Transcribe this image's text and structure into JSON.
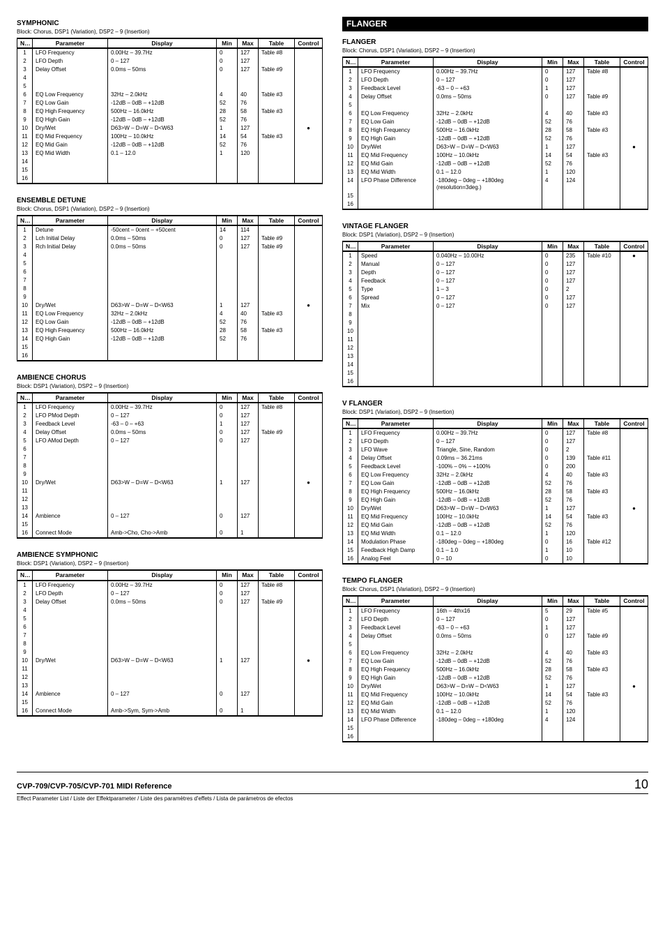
{
  "footer": {
    "title": "CVP-709/CVP-705/CVP-701 MIDI Reference",
    "sub": "Effect Parameter List / Liste der Effektparameter / Liste des paramètres d'effets / Lista de parámetros de efectos",
    "page": "10"
  },
  "headers": [
    "No.",
    "Parameter",
    "Display",
    "Min",
    "Max",
    "Table",
    "Control"
  ],
  "sections": {
    "symphonic": {
      "title": "SYMPHONIC",
      "sub": "Block: Chorus, DSP1 (Variation), DSP2 – 9 (Insertion)",
      "rows": [
        [
          "1",
          "LFO Frequency",
          "0.00Hz – 39.7Hz",
          "0",
          "127",
          "Table #8",
          ""
        ],
        [
          "2",
          "LFO Depth",
          "0 – 127",
          "0",
          "127",
          "",
          ""
        ],
        [
          "3",
          "Delay Offset",
          "0.0ms – 50ms",
          "0",
          "127",
          "Table #9",
          ""
        ],
        [
          "4",
          "",
          "",
          "",
          "",
          "",
          ""
        ],
        [
          "5",
          "",
          "",
          "",
          "",
          "",
          ""
        ],
        [
          "6",
          "EQ Low Frequency",
          "32Hz – 2.0kHz",
          "4",
          "40",
          "Table #3",
          ""
        ],
        [
          "7",
          "EQ Low Gain",
          "-12dB – 0dB – +12dB",
          "52",
          "76",
          "",
          ""
        ],
        [
          "8",
          "EQ High Frequency",
          "500Hz – 16.0kHz",
          "28",
          "58",
          "Table #3",
          ""
        ],
        [
          "9",
          "EQ High Gain",
          "-12dB – 0dB – +12dB",
          "52",
          "76",
          "",
          ""
        ],
        [
          "10",
          "Dry/Wet",
          "D63>W – D=W – D<W63",
          "1",
          "127",
          "",
          "●"
        ],
        [
          "11",
          "EQ Mid Frequency",
          "100Hz – 10.0kHz",
          "14",
          "54",
          "Table #3",
          ""
        ],
        [
          "12",
          "EQ Mid Gain",
          "-12dB – 0dB – +12dB",
          "52",
          "76",
          "",
          ""
        ],
        [
          "13",
          "EQ Mid Width",
          "0.1 – 12.0",
          "1",
          "120",
          "",
          ""
        ],
        [
          "14",
          "",
          "",
          "",
          "",
          "",
          ""
        ],
        [
          "15",
          "",
          "",
          "",
          "",
          "",
          ""
        ],
        [
          "16",
          "",
          "",
          "",
          "",
          "",
          ""
        ]
      ]
    },
    "ensemble": {
      "title": "ENSEMBLE DETUNE",
      "sub": "Block: Chorus, DSP1 (Variation), DSP2 – 9 (Insertion)",
      "rows": [
        [
          "1",
          "Detune",
          "-50cent – 0cent – +50cent",
          "14",
          "114",
          "",
          ""
        ],
        [
          "2",
          "Lch Initial Delay",
          "0.0ms – 50ms",
          "0",
          "127",
          "Table #9",
          ""
        ],
        [
          "3",
          "Rch Initial Delay",
          "0.0ms – 50ms",
          "0",
          "127",
          "Table #9",
          ""
        ],
        [
          "4",
          "",
          "",
          "",
          "",
          "",
          ""
        ],
        [
          "5",
          "",
          "",
          "",
          "",
          "",
          ""
        ],
        [
          "6",
          "",
          "",
          "",
          "",
          "",
          ""
        ],
        [
          "7",
          "",
          "",
          "",
          "",
          "",
          ""
        ],
        [
          "8",
          "",
          "",
          "",
          "",
          "",
          ""
        ],
        [
          "9",
          "",
          "",
          "",
          "",
          "",
          ""
        ],
        [
          "10",
          "Dry/Wet",
          "D63>W – D=W – D<W63",
          "1",
          "127",
          "",
          "●"
        ],
        [
          "11",
          "EQ Low Frequency",
          "32Hz – 2.0kHz",
          "4",
          "40",
          "Table #3",
          ""
        ],
        [
          "12",
          "EQ Low Gain",
          "-12dB – 0dB – +12dB",
          "52",
          "76",
          "",
          ""
        ],
        [
          "13",
          "EQ High Frequency",
          "500Hz – 16.0kHz",
          "28",
          "58",
          "Table #3",
          ""
        ],
        [
          "14",
          "EQ High Gain",
          "-12dB – 0dB – +12dB",
          "52",
          "76",
          "",
          ""
        ],
        [
          "15",
          "",
          "",
          "",
          "",
          "",
          ""
        ],
        [
          "16",
          "",
          "",
          "",
          "",
          "",
          ""
        ]
      ]
    },
    "ambChorus": {
      "title": "AMBIENCE CHORUS",
      "sub": "Block: DSP1 (Variation), DSP2 – 9 (Insertion)",
      "rows": [
        [
          "1",
          "LFO Frequency",
          "0.00Hz – 39.7Hz",
          "0",
          "127",
          "Table #8",
          ""
        ],
        [
          "2",
          "LFO PMod Depth",
          "0 – 127",
          "0",
          "127",
          "",
          ""
        ],
        [
          "3",
          "Feedback Level",
          "-63 – 0 – +63",
          "1",
          "127",
          "",
          ""
        ],
        [
          "4",
          "Delay Offset",
          "0.0ms – 50ms",
          "0",
          "127",
          "Table #9",
          ""
        ],
        [
          "5",
          "LFO AMod Depth",
          "0 – 127",
          "0",
          "127",
          "",
          ""
        ],
        [
          "6",
          "",
          "",
          "",
          "",
          "",
          ""
        ],
        [
          "7",
          "",
          "",
          "",
          "",
          "",
          ""
        ],
        [
          "8",
          "",
          "",
          "",
          "",
          "",
          ""
        ],
        [
          "9",
          "",
          "",
          "",
          "",
          "",
          ""
        ],
        [
          "10",
          "Dry/Wet",
          "D63>W – D=W – D<W63",
          "1",
          "127",
          "",
          "●"
        ],
        [
          "11",
          "",
          "",
          "",
          "",
          "",
          ""
        ],
        [
          "12",
          "",
          "",
          "",
          "",
          "",
          ""
        ],
        [
          "13",
          "",
          "",
          "",
          "",
          "",
          ""
        ],
        [
          "14",
          "Ambience",
          "0 – 127",
          "0",
          "127",
          "",
          ""
        ],
        [
          "15",
          "",
          "",
          "",
          "",
          "",
          ""
        ],
        [
          "16",
          "Connect Mode",
          "Amb->Cho, Cho->Amb",
          "0",
          "1",
          "",
          ""
        ]
      ]
    },
    "ambSym": {
      "title": "AMBIENCE SYMPHONIC",
      "sub": "Block: DSP1 (Variation), DSP2 – 9 (Insertion)",
      "rows": [
        [
          "1",
          "LFO Frequency",
          "0.00Hz – 39.7Hz",
          "0",
          "127",
          "Table #8",
          ""
        ],
        [
          "2",
          "LFO Depth",
          "0 – 127",
          "0",
          "127",
          "",
          ""
        ],
        [
          "3",
          "Delay Offset",
          "0.0ms – 50ms",
          "0",
          "127",
          "Table #9",
          ""
        ],
        [
          "4",
          "",
          "",
          "",
          "",
          "",
          ""
        ],
        [
          "5",
          "",
          "",
          "",
          "",
          "",
          ""
        ],
        [
          "6",
          "",
          "",
          "",
          "",
          "",
          ""
        ],
        [
          "7",
          "",
          "",
          "",
          "",
          "",
          ""
        ],
        [
          "8",
          "",
          "",
          "",
          "",
          "",
          ""
        ],
        [
          "9",
          "",
          "",
          "",
          "",
          "",
          ""
        ],
        [
          "10",
          "Dry/Wet",
          "D63>W – D=W – D<W63",
          "1",
          "127",
          "",
          "●"
        ],
        [
          "11",
          "",
          "",
          "",
          "",
          "",
          ""
        ],
        [
          "12",
          "",
          "",
          "",
          "",
          "",
          ""
        ],
        [
          "13",
          "",
          "",
          "",
          "",
          "",
          ""
        ],
        [
          "14",
          "Ambience",
          "0 – 127",
          "0",
          "127",
          "",
          ""
        ],
        [
          "15",
          "",
          "",
          "",
          "",
          "",
          ""
        ],
        [
          "16",
          "Connect Mode",
          "Amb->Sym, Sym->Amb",
          "0",
          "1",
          "",
          ""
        ]
      ]
    },
    "flangerBanner": "FLANGER",
    "flanger": {
      "title": "FLANGER",
      "sub": "Block: Chorus, DSP1 (Variation), DSP2 – 9 (Insertion)",
      "rows": [
        [
          "1",
          "LFO Frequency",
          "0.00Hz – 39.7Hz",
          "0",
          "127",
          "Table #8",
          ""
        ],
        [
          "2",
          "LFO Depth",
          "0 – 127",
          "0",
          "127",
          "",
          ""
        ],
        [
          "3",
          "Feedback Level",
          "-63 – 0 – +63",
          "1",
          "127",
          "",
          ""
        ],
        [
          "4",
          "Delay Offset",
          "0.0ms – 50ms",
          "0",
          "127",
          "Table #9",
          ""
        ],
        [
          "5",
          "",
          "",
          "",
          "",
          "",
          ""
        ],
        [
          "6",
          "EQ Low Frequency",
          "32Hz – 2.0kHz",
          "4",
          "40",
          "Table #3",
          ""
        ],
        [
          "7",
          "EQ Low Gain",
          "-12dB – 0dB – +12dB",
          "52",
          "76",
          "",
          ""
        ],
        [
          "8",
          "EQ High Frequency",
          "500Hz – 16.0kHz",
          "28",
          "58",
          "Table #3",
          ""
        ],
        [
          "9",
          "EQ High Gain",
          "-12dB – 0dB – +12dB",
          "52",
          "76",
          "",
          ""
        ],
        [
          "10",
          "Dry/Wet",
          "D63>W – D=W – D<W63",
          "1",
          "127",
          "",
          "●"
        ],
        [
          "11",
          "EQ Mid Frequency",
          "100Hz – 10.0kHz",
          "14",
          "54",
          "Table #3",
          ""
        ],
        [
          "12",
          "EQ Mid Gain",
          "-12dB – 0dB – +12dB",
          "52",
          "76",
          "",
          ""
        ],
        [
          "13",
          "EQ Mid Width",
          "0.1 – 12.0",
          "1",
          "120",
          "",
          ""
        ],
        [
          "14",
          "LFO Phase Difference",
          "-180deg – 0deg – +180deg (resolution=3deg.)",
          "4",
          "124",
          "",
          ""
        ],
        [
          "15",
          "",
          "",
          "",
          "",
          "",
          ""
        ],
        [
          "16",
          "",
          "",
          "",
          "",
          "",
          ""
        ]
      ]
    },
    "vintage": {
      "title": "VINTAGE FLANGER",
      "sub": "Block: DSP1 (Variation), DSP2 – 9 (Insertion)",
      "rows": [
        [
          "1",
          "Speed",
          "0.040Hz – 10.00Hz",
          "0",
          "235",
          "Table #10",
          "●"
        ],
        [
          "2",
          "Manual",
          "0 – 127",
          "0",
          "127",
          "",
          ""
        ],
        [
          "3",
          "Depth",
          "0 – 127",
          "0",
          "127",
          "",
          ""
        ],
        [
          "4",
          "Feedback",
          "0 – 127",
          "0",
          "127",
          "",
          ""
        ],
        [
          "5",
          "Type",
          "1 – 3",
          "0",
          "2",
          "",
          ""
        ],
        [
          "6",
          "Spread",
          "0 – 127",
          "0",
          "127",
          "",
          ""
        ],
        [
          "7",
          "Mix",
          "0 – 127",
          "0",
          "127",
          "",
          ""
        ],
        [
          "8",
          "",
          "",
          "",
          "",
          "",
          ""
        ],
        [
          "9",
          "",
          "",
          "",
          "",
          "",
          ""
        ],
        [
          "10",
          "",
          "",
          "",
          "",
          "",
          ""
        ],
        [
          "11",
          "",
          "",
          "",
          "",
          "",
          ""
        ],
        [
          "12",
          "",
          "",
          "",
          "",
          "",
          ""
        ],
        [
          "13",
          "",
          "",
          "",
          "",
          "",
          ""
        ],
        [
          "14",
          "",
          "",
          "",
          "",
          "",
          ""
        ],
        [
          "15",
          "",
          "",
          "",
          "",
          "",
          ""
        ],
        [
          "16",
          "",
          "",
          "",
          "",
          "",
          ""
        ]
      ]
    },
    "vflanger": {
      "title": "V FLANGER",
      "sub": "Block: DSP1 (Variation), DSP2 – 9 (Insertion)",
      "rows": [
        [
          "1",
          "LFO Frequency",
          "0.00Hz – 39.7Hz",
          "0",
          "127",
          "Table #8",
          ""
        ],
        [
          "2",
          "LFO Depth",
          "0 – 127",
          "0",
          "127",
          "",
          ""
        ],
        [
          "3",
          "LFO Wave",
          "Triangle, Sine, Random",
          "0",
          "2",
          "",
          ""
        ],
        [
          "4",
          "Delay Offset",
          "0.09ms – 36.21ms",
          "0",
          "139",
          "Table #11",
          ""
        ],
        [
          "5",
          "Feedback Level",
          "-100% – 0% – +100%",
          "0",
          "200",
          "",
          ""
        ],
        [
          "6",
          "EQ Low Frequency",
          "32Hz – 2.0kHz",
          "4",
          "40",
          "Table #3",
          ""
        ],
        [
          "7",
          "EQ Low Gain",
          "-12dB – 0dB – +12dB",
          "52",
          "76",
          "",
          ""
        ],
        [
          "8",
          "EQ High Frequency",
          "500Hz – 16.0kHz",
          "28",
          "58",
          "Table #3",
          ""
        ],
        [
          "9",
          "EQ High Gain",
          "-12dB – 0dB – +12dB",
          "52",
          "76",
          "",
          ""
        ],
        [
          "10",
          "Dry/Wet",
          "D63>W – D=W – D<W63",
          "1",
          "127",
          "",
          "●"
        ],
        [
          "11",
          "EQ Mid Frequency",
          "100Hz – 10.0kHz",
          "14",
          "54",
          "Table #3",
          ""
        ],
        [
          "12",
          "EQ Mid Gain",
          "-12dB – 0dB – +12dB",
          "52",
          "76",
          "",
          ""
        ],
        [
          "13",
          "EQ Mid Width",
          "0.1 – 12.0",
          "1",
          "120",
          "",
          ""
        ],
        [
          "14",
          "Modulation Phase",
          "-180deg – 0deg – +180deg",
          "0",
          "16",
          "Table #12",
          ""
        ],
        [
          "15",
          "Feedback High Damp",
          "0.1 – 1.0",
          "1",
          "10",
          "",
          ""
        ],
        [
          "16",
          "Analog Feel",
          "0 – 10",
          "0",
          "10",
          "",
          ""
        ]
      ]
    },
    "tempo": {
      "title": "TEMPO FLANGER",
      "sub": "Block: Chorus, DSP1 (Variation), DSP2 – 9 (Insertion)",
      "rows": [
        [
          "1",
          "LFO Frequency",
          "16th – 4thx16",
          "5",
          "29",
          "Table #5",
          ""
        ],
        [
          "2",
          "LFO Depth",
          "0 – 127",
          "0",
          "127",
          "",
          ""
        ],
        [
          "3",
          "Feedback Level",
          "-63 – 0 – +63",
          "1",
          "127",
          "",
          ""
        ],
        [
          "4",
          "Delay Offset",
          "0.0ms – 50ms",
          "0",
          "127",
          "Table #9",
          ""
        ],
        [
          "5",
          "",
          "",
          "",
          "",
          "",
          ""
        ],
        [
          "6",
          "EQ Low Frequency",
          "32Hz – 2.0kHz",
          "4",
          "40",
          "Table #3",
          ""
        ],
        [
          "7",
          "EQ Low Gain",
          "-12dB – 0dB – +12dB",
          "52",
          "76",
          "",
          ""
        ],
        [
          "8",
          "EQ High Frequency",
          "500Hz – 16.0kHz",
          "28",
          "58",
          "Table #3",
          ""
        ],
        [
          "9",
          "EQ High Gain",
          "-12dB – 0dB – +12dB",
          "52",
          "76",
          "",
          ""
        ],
        [
          "10",
          "Dry/Wet",
          "D63>W – D=W – D<W63",
          "1",
          "127",
          "",
          "●"
        ],
        [
          "11",
          "EQ Mid Frequency",
          "100Hz – 10.0kHz",
          "14",
          "54",
          "Table #3",
          ""
        ],
        [
          "12",
          "EQ Mid Gain",
          "-12dB – 0dB – +12dB",
          "52",
          "76",
          "",
          ""
        ],
        [
          "13",
          "EQ Mid Width",
          "0.1 – 12.0",
          "1",
          "120",
          "",
          ""
        ],
        [
          "14",
          "LFO Phase Difference",
          "-180deg – 0deg – +180deg",
          "4",
          "124",
          "",
          ""
        ],
        [
          "15",
          "",
          "",
          "",
          "",
          "",
          ""
        ],
        [
          "16",
          "",
          "",
          "",
          "",
          "",
          ""
        ]
      ]
    }
  }
}
